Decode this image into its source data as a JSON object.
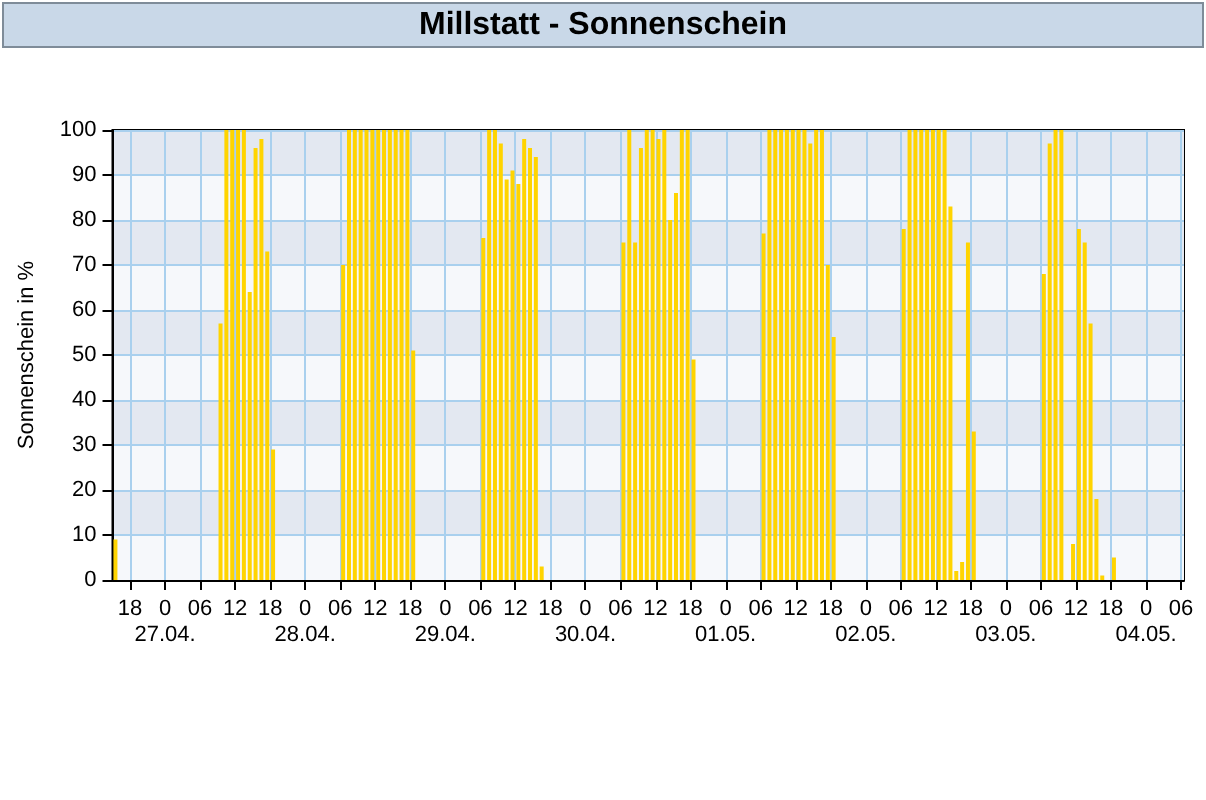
{
  "chart_data": {
    "type": "bar",
    "title": "Millstatt - Sonnenschein",
    "ylabel": "Sonnenschein in %",
    "color": "#ffd400",
    "x": [
      "--04-26T15:30",
      "--04-27T09:30",
      "--04-27T10:30",
      "--04-27T11:30",
      "--04-27T12:30",
      "--04-27T13:30",
      "--04-27T14:30",
      "--04-27T15:30",
      "--04-27T16:30",
      "--04-27T17:30",
      "--04-27T18:30",
      "--04-28T06:30",
      "--04-28T07:30",
      "--04-28T08:30",
      "--04-28T09:30",
      "--04-28T10:30",
      "--04-28T11:30",
      "--04-28T12:30",
      "--04-28T13:30",
      "--04-28T14:30",
      "--04-28T15:30",
      "--04-28T16:30",
      "--04-28T17:30",
      "--04-28T18:30",
      "--04-29T06:30",
      "--04-29T07:30",
      "--04-29T08:30",
      "--04-29T09:30",
      "--04-29T10:30",
      "--04-29T11:30",
      "--04-29T12:30",
      "--04-29T13:30",
      "--04-29T14:30",
      "--04-29T15:30",
      "--04-29T16:30",
      "--04-30T06:30",
      "--04-30T07:30",
      "--04-30T08:30",
      "--04-30T09:30",
      "--04-30T10:30",
      "--04-30T11:30",
      "--04-30T12:30",
      "--04-30T13:30",
      "--04-30T14:30",
      "--04-30T15:30",
      "--04-30T16:30",
      "--04-30T17:30",
      "--04-30T18:30",
      "--05-01T06:30",
      "--05-01T07:30",
      "--05-01T08:30",
      "--05-01T09:30",
      "--05-01T10:30",
      "--05-01T11:30",
      "--05-01T12:30",
      "--05-01T13:30",
      "--05-01T14:30",
      "--05-01T15:30",
      "--05-01T16:30",
      "--05-01T17:30",
      "--05-01T18:30",
      "--05-02T06:30",
      "--05-02T07:30",
      "--05-02T08:30",
      "--05-02T09:30",
      "--05-02T10:30",
      "--05-02T11:30",
      "--05-02T12:30",
      "--05-02T13:30",
      "--05-02T14:30",
      "--05-02T15:30",
      "--05-02T16:30",
      "--05-02T17:30",
      "--05-02T18:30",
      "--05-03T06:30",
      "--05-03T07:30",
      "--05-03T08:30",
      "--05-03T09:30",
      "--05-03T11:30",
      "--05-03T12:30",
      "--05-03T13:30",
      "--05-03T14:30",
      "--05-03T15:30",
      "--05-03T16:30",
      "--05-03T18:30"
    ],
    "values": [
      9,
      57,
      100,
      100,
      100,
      100,
      64,
      96,
      98,
      73,
      29,
      70,
      100,
      100,
      100,
      100,
      100,
      100,
      100,
      100,
      100,
      100,
      100,
      51,
      76,
      100,
      100,
      97,
      89,
      91,
      88,
      98,
      96,
      94,
      3,
      75,
      100,
      75,
      96,
      100,
      100,
      98,
      100,
      80,
      86,
      100,
      100,
      49,
      77,
      100,
      100,
      100,
      100,
      100,
      100,
      100,
      97,
      100,
      100,
      70,
      54,
      78,
      100,
      100,
      100,
      100,
      100,
      100,
      100,
      83,
      2,
      4,
      75,
      33,
      68,
      97,
      100,
      100,
      8,
      78,
      75,
      57,
      18,
      1,
      5
    ],
    "xlim": [
      "--04-26T15:00",
      "--05-04T06:30"
    ],
    "xticks": [
      {
        "value": "--04-26T18:00",
        "label": "18"
      },
      {
        "value": "--04-27T00:00",
        "label": "0\n27.04."
      },
      {
        "value": "--04-27T06:00",
        "label": "06"
      },
      {
        "value": "--04-27T12:00",
        "label": "12"
      },
      {
        "value": "--04-27T18:00",
        "label": "18"
      },
      {
        "value": "--04-28T00:00",
        "label": "0\n28.04."
      },
      {
        "value": "--04-28T06:00",
        "label": "06"
      },
      {
        "value": "--04-28T12:00",
        "label": "12"
      },
      {
        "value": "--04-28T18:00",
        "label": "18"
      },
      {
        "value": "--04-29T00:00",
        "label": "0\n29.04."
      },
      {
        "value": "--04-29T06:00",
        "label": "06"
      },
      {
        "value": "--04-29T12:00",
        "label": "12"
      },
      {
        "value": "--04-29T18:00",
        "label": "18"
      },
      {
        "value": "--04-30T00:00",
        "label": "0\n30.04."
      },
      {
        "value": "--04-30T06:00",
        "label": "06"
      },
      {
        "value": "--04-30T12:00",
        "label": "12"
      },
      {
        "value": "--04-30T18:00",
        "label": "18"
      },
      {
        "value": "--05-01T00:00",
        "label": "0\n01.05."
      },
      {
        "value": "--05-01T06:00",
        "label": "06"
      },
      {
        "value": "--05-01T12:00",
        "label": "12"
      },
      {
        "value": "--05-01T18:00",
        "label": "18"
      },
      {
        "value": "--05-02T00:00",
        "label": "0\n02.05."
      },
      {
        "value": "--05-02T06:00",
        "label": "06"
      },
      {
        "value": "--05-02T12:00",
        "label": "12"
      },
      {
        "value": "--05-02T18:00",
        "label": "18"
      },
      {
        "value": "--05-03T00:00",
        "label": "0\n03.05."
      },
      {
        "value": "--05-03T06:00",
        "label": "06"
      },
      {
        "value": "--05-03T12:00",
        "label": "12"
      },
      {
        "value": "--05-03T18:00",
        "label": "18"
      },
      {
        "value": "--05-04T00:00",
        "label": "0\n04.05."
      },
      {
        "value": "--05-04T06:00",
        "label": "06"
      }
    ],
    "ylim": [
      0,
      100
    ],
    "yticks": [
      0,
      10,
      20,
      30,
      40,
      50,
      60,
      70,
      80,
      90,
      100
    ],
    "grid": true
  }
}
